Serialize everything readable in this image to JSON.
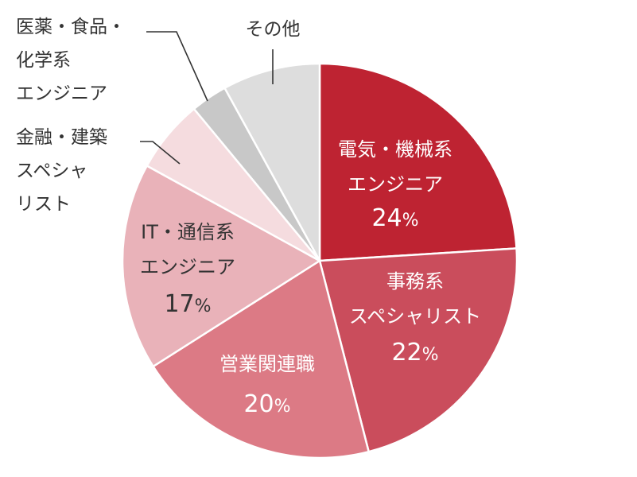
{
  "chart_data": {
    "type": "pie",
    "title": "",
    "slices": [
      {
        "label_lines": [
          "電気・機械系",
          "エンジニア"
        ],
        "value": 24,
        "value_label": "24%",
        "color": "#be2332"
      },
      {
        "label_lines": [
          "事務系",
          "スペシャリスト"
        ],
        "value": 22,
        "value_label": "22%",
        "color": "#ca4d5c"
      },
      {
        "label_lines": [
          "営業関連職"
        ],
        "value": 20,
        "value_label": "20%",
        "color": "#dc7a85"
      },
      {
        "label_lines": [
          "IT・通信系",
          "エンジニア"
        ],
        "value": 17,
        "value_label": "17%",
        "color": "#e9b2b9"
      },
      {
        "label_lines": [
          "金融・建築",
          "スペシャ",
          "リスト"
        ],
        "value": 6,
        "value_label": "",
        "color": "#f5dcdf"
      },
      {
        "label_lines": [
          "医薬・食品・",
          "化学系",
          "エンジニア"
        ],
        "value": 3,
        "value_label": "",
        "color": "#c8c8c8"
      },
      {
        "label_lines": [
          "その他"
        ],
        "value": 8,
        "value_label": "",
        "color": "#dddddd"
      }
    ],
    "legend": "none",
    "start_angle": "12 o'clock",
    "direction": "clockwise"
  }
}
